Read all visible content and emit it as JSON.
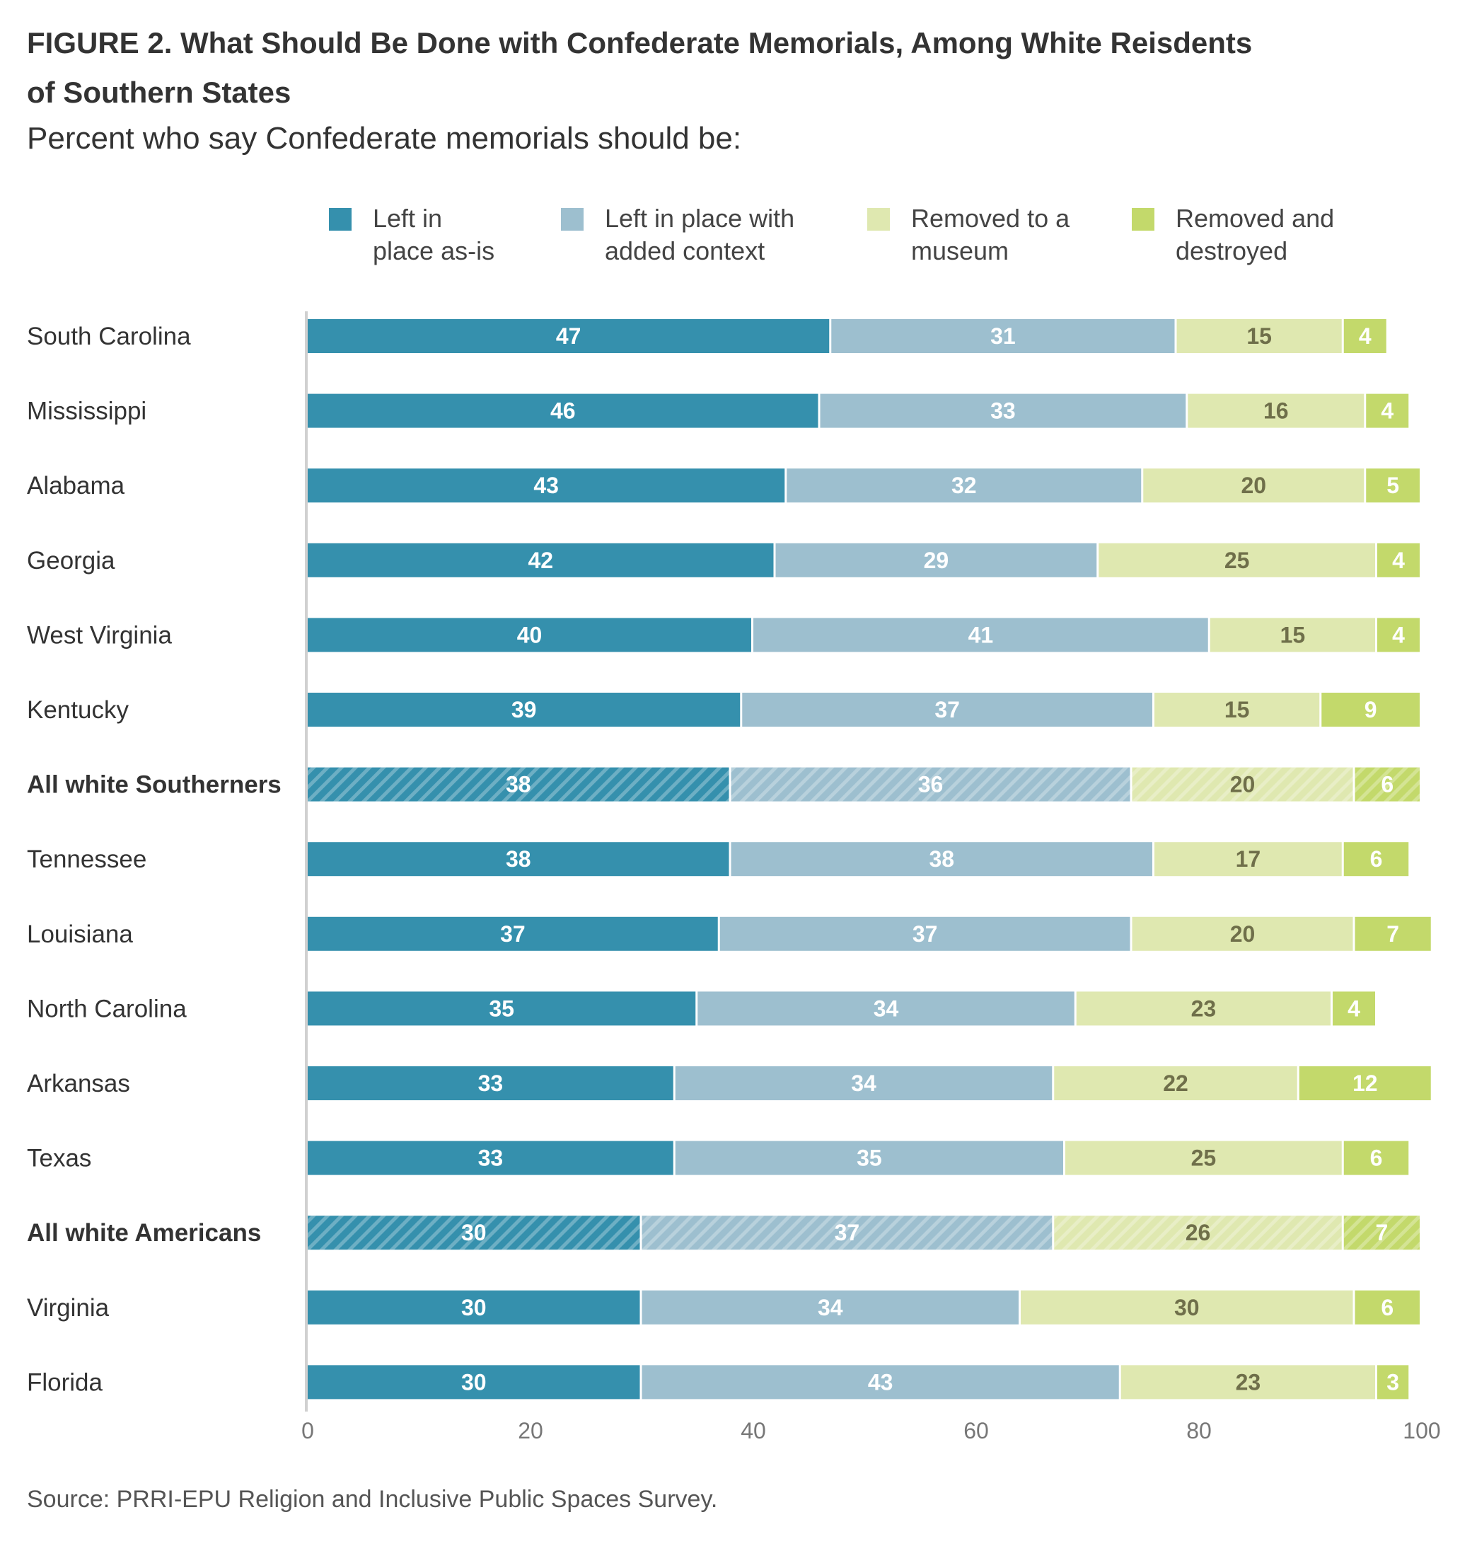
{
  "title": {
    "line1": "FIGURE 2.  What Should Be Done with Confederate Memorials, Among White Reisdents",
    "line2": "of Southern States"
  },
  "subtitle": "Percent who say Confederate memorials should be:",
  "source": "Source: PRRI-EPU Religion and Inclusive Public Spaces Survey.",
  "colors": {
    "left_as_is": "#3590ad",
    "added_context": "#9dbfcf",
    "museum": "#dfe8b0",
    "destroyed": "#c3d96b",
    "label_dark": "#ffffff",
    "label_light": "#6f6f4a"
  },
  "legend": [
    {
      "line1": "Left in",
      "line2": "place as-is",
      "color": "#3590ad"
    },
    {
      "line1": "Left in place with",
      "line2": "added context",
      "color": "#9dbfcf"
    },
    {
      "line1": "Removed to a",
      "line2": "museum",
      "color": "#dfe8b0"
    },
    {
      "line1": "Removed and",
      "line2": "destroyed",
      "color": "#c3d96b"
    }
  ],
  "chart_data": {
    "type": "bar",
    "orientation": "horizontal",
    "stacked": true,
    "xlim": [
      0,
      100
    ],
    "xticks": [
      0,
      20,
      40,
      60,
      80,
      100
    ],
    "categories": [
      "South Carolina",
      "Mississippi",
      "Alabama",
      "Georgia",
      "West Virginia",
      "Kentucky",
      "All white Southerners",
      "Tennessee",
      "Louisiana",
      "North Carolina",
      "Arkansas",
      "Texas",
      "All white Americans",
      "Virginia",
      "Florida"
    ],
    "highlighted": [
      "All white Southerners",
      "All white Americans"
    ],
    "series": [
      {
        "name": "Left in place as-is",
        "values": [
          47,
          46,
          43,
          42,
          40,
          39,
          38,
          38,
          37,
          35,
          33,
          33,
          30,
          30,
          30
        ]
      },
      {
        "name": "Left in place with added context",
        "values": [
          31,
          33,
          32,
          29,
          41,
          37,
          36,
          38,
          37,
          34,
          34,
          35,
          37,
          34,
          43
        ]
      },
      {
        "name": "Removed to a museum",
        "values": [
          15,
          16,
          20,
          25,
          15,
          15,
          20,
          17,
          20,
          23,
          22,
          25,
          26,
          30,
          23
        ]
      },
      {
        "name": "Removed and destroyed",
        "values": [
          4,
          4,
          5,
          4,
          4,
          9,
          6,
          6,
          7,
          4,
          12,
          6,
          7,
          6,
          3
        ]
      }
    ],
    "grid": false,
    "legend_position": "top"
  }
}
